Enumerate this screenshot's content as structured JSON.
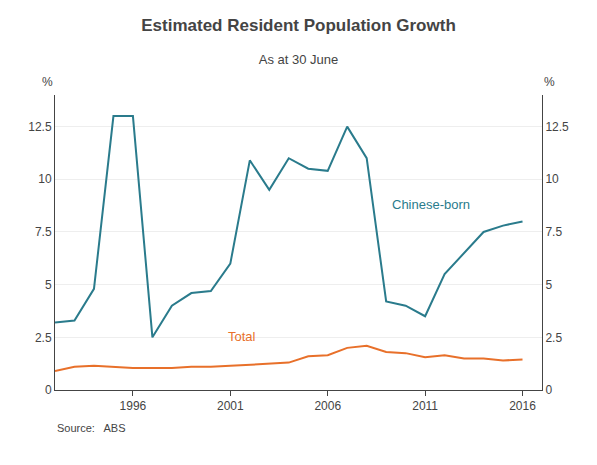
{
  "chart_data": {
    "type": "line",
    "title": "Estimated Resident Population Growth",
    "subtitle": "As at 30 June",
    "source": "Source:   ABS",
    "ylabel": "%",
    "y2label": "%",
    "x": [
      1992,
      1993,
      1994,
      1995,
      1996,
      1997,
      1998,
      1999,
      2000,
      2001,
      2002,
      2003,
      2004,
      2005,
      2006,
      2007,
      2008,
      2009,
      2010,
      2011,
      2012,
      2013,
      2014,
      2015,
      2016
    ],
    "series": [
      {
        "name": "Chinese-born",
        "color": "#2a7b8c",
        "values": [
          3.2,
          3.3,
          4.8,
          13.0,
          13.0,
          2.5,
          4.0,
          4.6,
          4.7,
          6.0,
          10.9,
          9.5,
          11.0,
          10.5,
          10.4,
          12.5,
          11.0,
          4.2,
          4.0,
          3.5,
          5.5,
          6.5,
          7.5,
          7.8,
          8.0
        ]
      },
      {
        "name": "Total",
        "color": "#e8702a",
        "values": [
          0.9,
          1.1,
          1.15,
          1.1,
          1.05,
          1.05,
          1.05,
          1.1,
          1.1,
          1.15,
          1.2,
          1.25,
          1.3,
          1.6,
          1.65,
          2.0,
          2.1,
          1.8,
          1.75,
          1.55,
          1.65,
          1.5,
          1.5,
          1.4,
          1.45
        ]
      }
    ],
    "annotations": [
      {
        "text": "Chinese-born",
        "x": 2009.2,
        "y": 8.8,
        "color": "#2a7b8c"
      },
      {
        "text": "Total",
        "x": 2000.8,
        "y": 2.55,
        "color": "#e8702a"
      }
    ],
    "xlim": [
      1992,
      2017
    ],
    "xticks": [
      1996,
      2001,
      2006,
      2011,
      2016
    ],
    "ylim": [
      0,
      14
    ],
    "yticks": [
      0,
      2.5,
      5,
      7.5,
      10,
      12.5
    ],
    "y2lim": [
      0,
      14
    ],
    "y2ticks": [
      0,
      2.5,
      5,
      7.5,
      10,
      12.5
    ],
    "grid": true
  }
}
